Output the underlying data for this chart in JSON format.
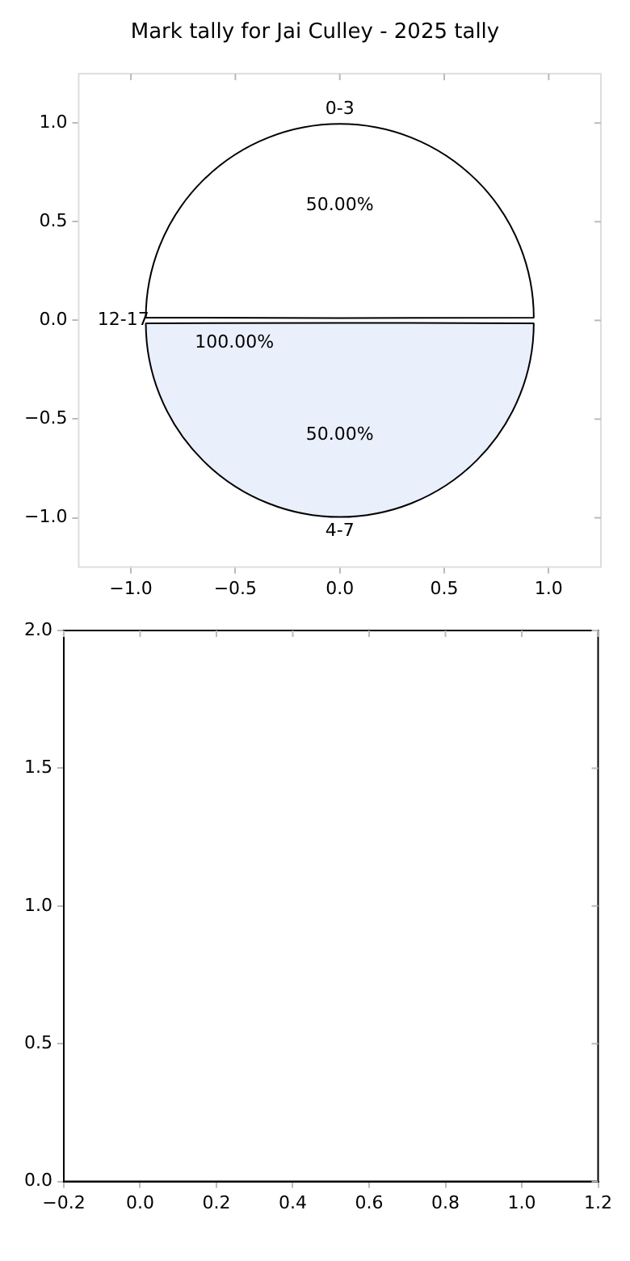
{
  "chart_data": [
    {
      "type": "pie",
      "title": "Mark tally for Jai Culley - 2025 tally",
      "categories": [
        "0-3",
        "4-7",
        "12-17"
      ],
      "values": [
        50,
        50,
        0
      ],
      "value_labels": [
        "50.00%",
        "50.00%",
        null
      ],
      "colors": [
        "#ffffff",
        "#eaf0fb",
        "#ffffff"
      ],
      "annotations": [
        "100.00%"
      ],
      "legend": false
    },
    {
      "type": "scatter",
      "grid": false,
      "legend": false,
      "xlim": [
        -1.25,
        1.25
      ],
      "ylim": [
        -1.25,
        1.25
      ],
      "xticks": [
        {
          "value": -1,
          "label": "−1.0"
        },
        {
          "value": -0.5,
          "label": "−0.5"
        },
        {
          "value": 0,
          "label": "0.0"
        },
        {
          "value": 0.5,
          "label": "0.5"
        },
        {
          "value": 1,
          "label": "1.0"
        }
      ],
      "yticks": [
        {
          "value": -1,
          "label": "−1.0"
        },
        {
          "value": -0.5,
          "label": "−0.5"
        },
        {
          "value": 0,
          "label": "0.0"
        },
        {
          "value": 0.5,
          "label": "0.5"
        },
        {
          "value": 1,
          "label": "1.0"
        }
      ]
    },
    {
      "type": "scatter",
      "grid": false,
      "legend": false,
      "xlim": [
        -0.2,
        1.2
      ],
      "ylim": [
        0,
        2
      ],
      "xticks": [
        {
          "value": -0.2,
          "label": "−0.2"
        },
        {
          "value": 0,
          "label": "0.0"
        },
        {
          "value": 0.2,
          "label": "0.2"
        },
        {
          "value": 0.4,
          "label": "0.4"
        },
        {
          "value": 0.6,
          "label": "0.6"
        },
        {
          "value": 0.8,
          "label": "0.8"
        },
        {
          "value": 1,
          "label": "1.0"
        },
        {
          "value": 1.2,
          "label": "1.2"
        }
      ],
      "yticks": [
        {
          "value": 0,
          "label": "0.0"
        },
        {
          "value": 0.5,
          "label": "0.5"
        },
        {
          "value": 1,
          "label": "1.0"
        },
        {
          "value": 1.5,
          "label": "1.5"
        },
        {
          "value": 2,
          "label": "2.0"
        }
      ]
    }
  ]
}
